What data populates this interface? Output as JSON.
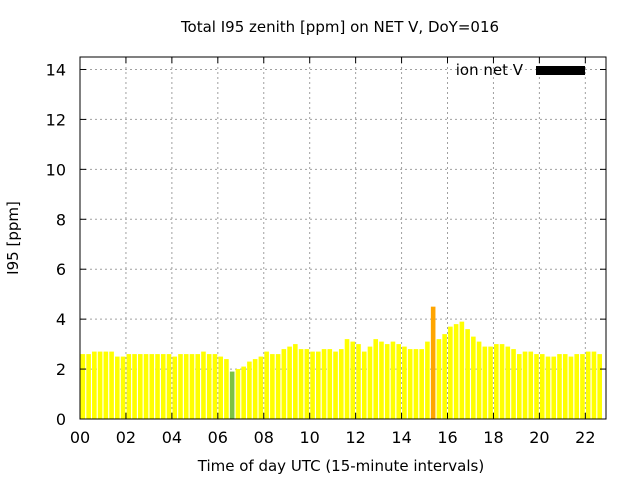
{
  "chart_data": {
    "type": "bar",
    "title": "Total I95 zenith [ppm] on NET V, DoY=016",
    "xlabel": "Time of day UTC (15-minute intervals)",
    "ylabel": "I95 [ppm]",
    "legend": {
      "label": "ion net V",
      "color": "#000000",
      "position": "top-right"
    },
    "xlim": [
      0,
      22.9
    ],
    "ylim": [
      0,
      14.5
    ],
    "xticks": [
      "00",
      "02",
      "04",
      "06",
      "08",
      "10",
      "12",
      "14",
      "16",
      "18",
      "20",
      "22"
    ],
    "yticks": [
      "0",
      "2",
      "4",
      "6",
      "8",
      "10",
      "12",
      "14"
    ],
    "grid": true,
    "colors": {
      "normal": "#ffff00",
      "low": "#7cc242",
      "high": "#ffa500"
    },
    "series": [
      {
        "values": [
          2.6,
          2.6,
          2.7,
          2.7,
          2.7,
          2.7,
          2.5,
          2.5,
          2.6,
          2.6,
          2.6,
          2.6,
          2.6,
          2.6,
          2.6,
          2.6,
          2.5,
          2.6,
          2.6,
          2.6,
          2.6,
          2.7,
          2.6,
          2.6,
          2.5,
          2.4,
          1.9,
          2.0,
          2.1,
          2.3,
          2.4,
          2.5,
          2.7,
          2.6,
          2.6,
          2.8,
          2.9,
          3.0,
          2.8,
          2.8,
          2.7,
          2.7,
          2.8,
          2.8,
          2.7,
          2.8,
          3.2,
          3.1,
          3.0,
          2.7,
          2.9,
          3.2,
          3.1,
          3.0,
          3.1,
          3.0,
          2.9,
          2.8,
          2.8,
          2.8,
          3.1,
          4.5,
          3.2,
          3.4,
          3.7,
          3.8,
          3.9,
          3.6,
          3.3,
          3.1,
          2.9,
          2.9,
          3.0,
          3.0,
          2.9,
          2.8,
          2.6,
          2.7,
          2.7,
          2.6,
          2.6,
          2.5,
          2.5,
          2.6,
          2.6,
          2.5,
          2.6,
          2.6,
          2.7,
          2.7,
          2.6
        ],
        "flags": {
          "26": "low",
          "61": "high"
        }
      }
    ]
  }
}
